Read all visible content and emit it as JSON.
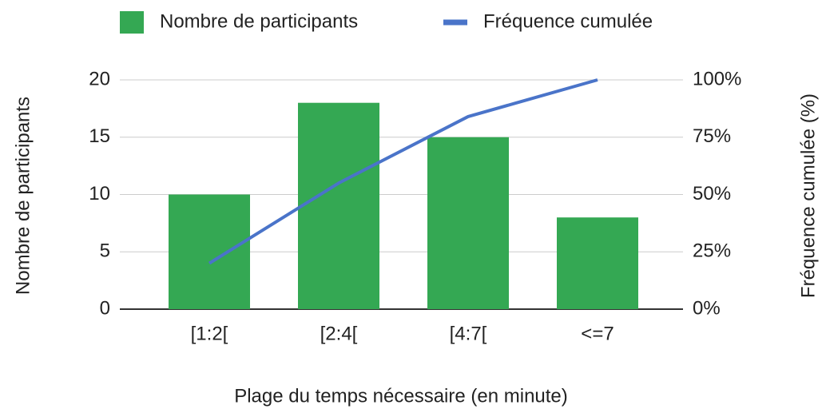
{
  "chart_data": {
    "type": "bar_line",
    "x_label": "Plage du temps nécessaire (en minute)",
    "y_label": "Nombre de participants",
    "y2_label": "Fréquence cumulée (%)",
    "categories": [
      "[1:2[",
      "[2:4[",
      "[4:7[",
      "<=7"
    ],
    "series": [
      {
        "name": "Nombre de participants",
        "type": "bar",
        "color": "#34a853",
        "values": [
          10,
          18,
          15,
          8
        ]
      },
      {
        "name": "Fréquence cumulée",
        "type": "line",
        "axis": "y2",
        "color": "#4a74c9",
        "values": [
          20,
          55,
          84,
          100
        ]
      }
    ],
    "ylim": [
      0,
      20
    ],
    "yticks": [
      0,
      5,
      10,
      15,
      20
    ],
    "y2lim": [
      0,
      100
    ],
    "y2ticks": [
      {
        "value": 0,
        "label": "0%"
      },
      {
        "value": 25,
        "label": "25%"
      },
      {
        "value": 50,
        "label": "50%"
      },
      {
        "value": 75,
        "label": "75%"
      },
      {
        "value": 100,
        "label": "100%"
      }
    ],
    "grid": true,
    "legend": "top"
  }
}
